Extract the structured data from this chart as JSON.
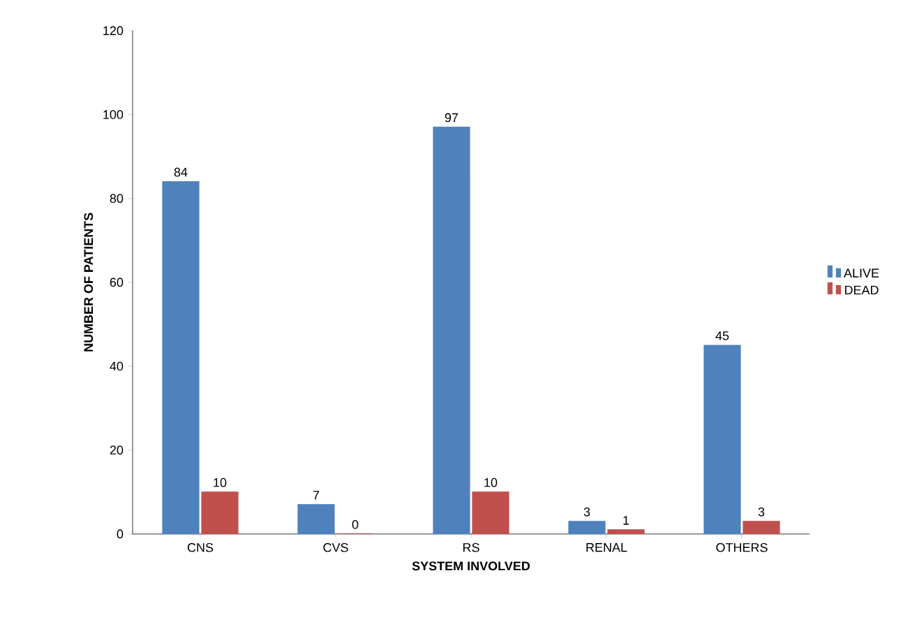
{
  "chart_data": {
    "type": "bar",
    "xlabel": "SYSTEM INVOLVED",
    "ylabel": "NUMBER OF PATIENTS",
    "categories": [
      "CNS",
      "CVS",
      "RS",
      "RENAL",
      "OTHERS"
    ],
    "series": [
      {
        "name": "ALIVE",
        "color": "#4f81bd",
        "values": [
          84,
          7,
          97,
          3,
          45
        ]
      },
      {
        "name": "DEAD",
        "color": "#c0504d",
        "values": [
          10,
          0,
          10,
          1,
          3
        ]
      }
    ],
    "ylim": [
      0,
      120
    ],
    "yticks": [
      0,
      20,
      40,
      60,
      80,
      100,
      120
    ],
    "grid": false,
    "legend": "right",
    "data_labels": true
  }
}
